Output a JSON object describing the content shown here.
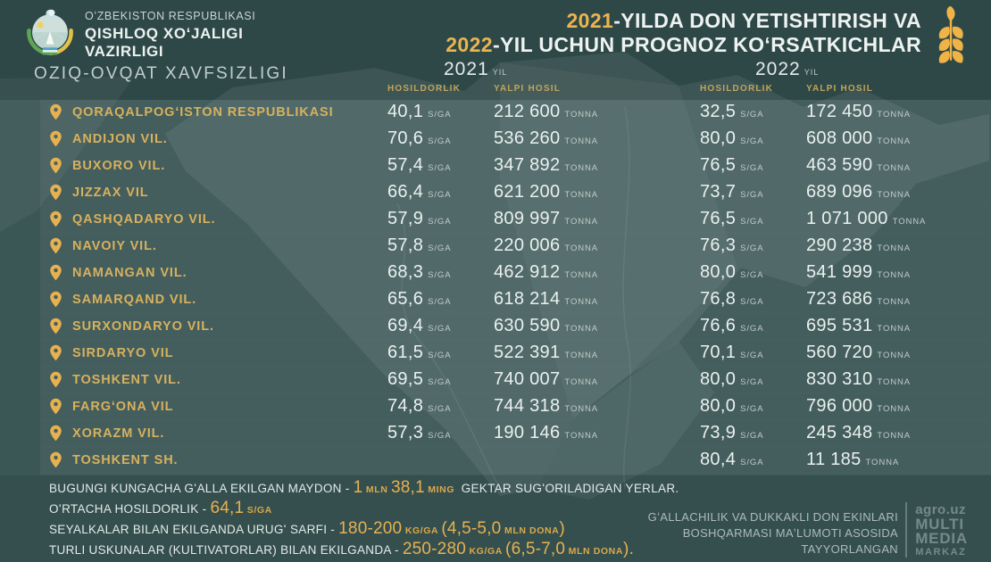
{
  "colors": {
    "background": "#3A5655",
    "title_gold": "#ECB44E",
    "region_gold": "#D7B15E",
    "header_gold": "#C2A55B",
    "value_white": "#EAF1EF",
    "wheat_gold": "#EFB347"
  },
  "header": {
    "ministry_line1": "OʻZBEKISTON RESPUBLIKASI",
    "ministry_line2": "QISHLOQ XOʻJALIGI",
    "ministry_line3": "VAZIRLIGI",
    "subtitle": "OZIQ-OVQAT XAVFSIZLIGI",
    "title_year1": "2021",
    "title_rest1": "-YILDA DON YETISHTIRISH VA",
    "title_year2": "2022",
    "title_rest2": "-YIL UCHUN PROGNOZ KOʻRSATKICHLAR"
  },
  "chart_data": {
    "type": "table",
    "title": "2021-YILDA DON YETISHTIRISH VA 2022-YIL UCHUN PROGNOZ KOʻRSATKICHLAR",
    "column_groups": [
      {
        "year": "2021",
        "suffix": "YIL"
      },
      {
        "year": "2022",
        "suffix": "YIL"
      }
    ],
    "sub_columns": [
      "HOSILDORLIK",
      "YALPI HOSIL"
    ],
    "units": {
      "yield": "S/GA",
      "total": "TONNA"
    },
    "rows": [
      {
        "region": "QORAQALPOGʻISTON RESPUBLIKASI",
        "values": [
          "40,1",
          "212 600",
          "32,5",
          "172 450"
        ]
      },
      {
        "region": "ANDIJON VIL.",
        "values": [
          "70,6",
          "536 260",
          "80,0",
          "608 000"
        ]
      },
      {
        "region": "BUXORO VIL.",
        "values": [
          "57,4",
          "347 892",
          "76,5",
          "463 590"
        ]
      },
      {
        "region": "JIZZAX VIL",
        "values": [
          "66,4",
          "621 200",
          "73,7",
          "689 096"
        ]
      },
      {
        "region": "QASHQADARYO VIL.",
        "values": [
          "57,9",
          "809 997",
          "76,5",
          "1 071 000"
        ]
      },
      {
        "region": "NAVOIY VIL.",
        "values": [
          "57,8",
          "220 006",
          "76,3",
          "290 238"
        ]
      },
      {
        "region": "NAMANGAN VIL.",
        "values": [
          "68,3",
          "462 912",
          "80,0",
          "541 999"
        ]
      },
      {
        "region": "SAMARQAND VIL.",
        "values": [
          "65,6",
          "618 214",
          "76,8",
          "723 686"
        ]
      },
      {
        "region": "SURXONDARYO VIL.",
        "values": [
          "69,4",
          "630 590",
          "76,6",
          "695 531"
        ]
      },
      {
        "region": "SIRDARYO VIL",
        "values": [
          "61,5",
          "522 391",
          "70,1",
          "560 720"
        ]
      },
      {
        "region": "TOSHKENT VIL.",
        "values": [
          "69,5",
          "740 007",
          "80,0",
          "830 310"
        ]
      },
      {
        "region": "FARGʻONA VIL",
        "values": [
          "74,8",
          "744 318",
          "80,0",
          "796 000"
        ]
      },
      {
        "region": "XORAZM VIL.",
        "values": [
          "57,3",
          "190 146",
          "73,9",
          "245 348"
        ]
      },
      {
        "region": "TOSHKENT SH.",
        "values": [
          "",
          "",
          "80,4",
          "11 185"
        ]
      }
    ]
  },
  "footer": {
    "lines": [
      {
        "segments": [
          {
            "t": "BUGUNGI KUNGACHA GʻALLA EKILGAN MAYDON - ",
            "s": "w"
          },
          {
            "t": "1",
            "s": "g"
          },
          {
            "t": " MLN ",
            "s": "gs"
          },
          {
            "t": "38,1",
            "s": "g"
          },
          {
            "t": " MING ",
            "s": "gs"
          },
          {
            "t": " GEKTAR SUGʻORILADIGAN YERLAR.",
            "s": "w"
          }
        ]
      },
      {
        "segments": [
          {
            "t": "OʻRTACHA HOSILDORLIK - ",
            "s": "w"
          },
          {
            "t": "64,1",
            "s": "g"
          },
          {
            "t": " S/GA",
            "s": "gs"
          }
        ]
      },
      {
        "segments": [
          {
            "t": "SEYALKALAR BILAN EKILGANDA URUGʻ SARFI - ",
            "s": "w"
          },
          {
            "t": "180-200",
            "s": "g"
          },
          {
            "t": " KG/GA ",
            "s": "gs"
          },
          {
            "t": "(4,5-5,0",
            "s": "g"
          },
          {
            "t": " MLN DONA",
            "s": "gs"
          },
          {
            "t": ")",
            "s": "g"
          }
        ]
      },
      {
        "segments": [
          {
            "t": "TURLI USKUNALAR (KULTIVATORLAR) BILAN EKILGANDA - ",
            "s": "w"
          },
          {
            "t": "250-280",
            "s": "g"
          },
          {
            "t": " KG/GA ",
            "s": "gs"
          },
          {
            "t": "(6,5-7,0",
            "s": "g"
          },
          {
            "t": " MLN DONA",
            "s": "gs"
          },
          {
            "t": ").",
            "s": "g"
          }
        ]
      }
    ]
  },
  "credit": {
    "line1": "GʻALLACHILIK VA DUKKAKLI DON EKINLARI",
    "line2": "BOSHQARMASI MAʼLUMOTI ASOSIDA",
    "line3": "TAYYORLANGAN"
  },
  "logo": {
    "site": "agro.uz",
    "word1": "MULTI",
    "word2": "MEDIA",
    "word3": "MARKAZ"
  }
}
